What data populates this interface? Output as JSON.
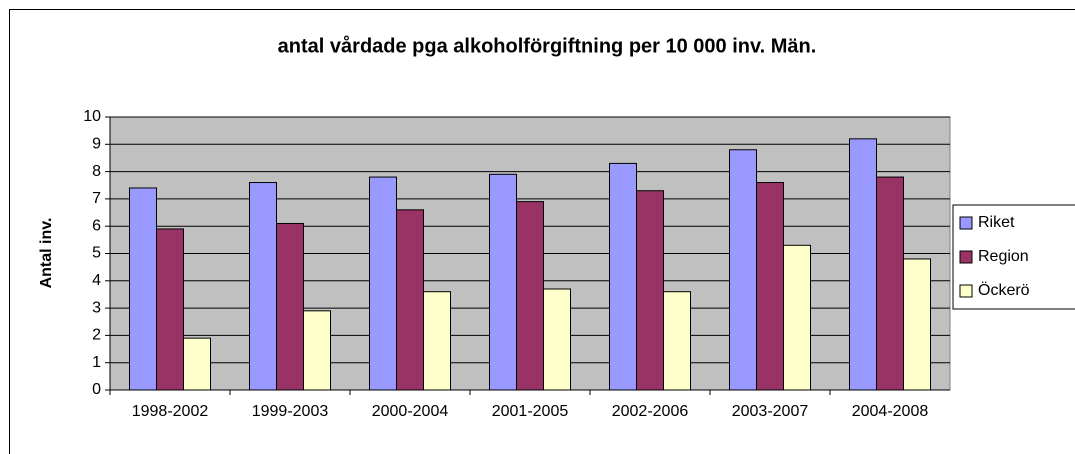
{
  "chart_data": {
    "type": "bar",
    "title": "antal vårdade pga alkoholförgiftning per 10 000 inv. Män.",
    "y_label": "Antal inv.",
    "categories": [
      "1998-2002",
      "1999-2003",
      "2000-2004",
      "2001-2005",
      "2002-2006",
      "2003-2007",
      "2004-2008"
    ],
    "series": [
      {
        "name": "Riket",
        "color": "#9999ff",
        "values": [
          7.4,
          7.6,
          7.8,
          7.9,
          8.3,
          8.8,
          9.2
        ]
      },
      {
        "name": "Region",
        "color": "#993366",
        "values": [
          5.9,
          6.1,
          6.6,
          6.9,
          7.3,
          7.6,
          7.8
        ]
      },
      {
        "name": "Öckerö",
        "color": "#ffffcc",
        "values": [
          1.9,
          2.9,
          3.6,
          3.7,
          3.6,
          5.3,
          4.8
        ]
      }
    ],
    "ylim": [
      0,
      10
    ],
    "yticks": [
      0,
      1,
      2,
      3,
      4,
      5,
      6,
      7,
      8,
      9,
      10
    ],
    "grid": true,
    "legend": "right"
  }
}
